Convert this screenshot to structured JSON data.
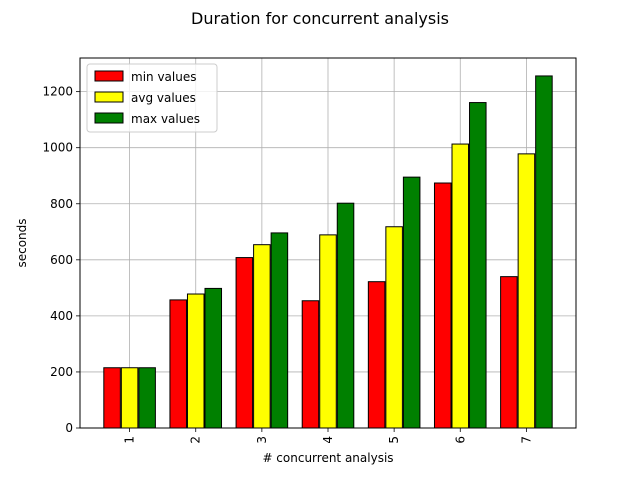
{
  "chart_data": {
    "type": "bar",
    "title": "Duration for concurrent analysis",
    "xlabel": "# concurrent analysis",
    "ylabel": "seconds",
    "categories": [
      "1",
      "2",
      "3",
      "4",
      "5",
      "6",
      "7"
    ],
    "series": [
      {
        "name": "min values",
        "color": "#ff0000",
        "values": [
          215,
          457,
          608,
          454,
          522,
          874,
          540
        ]
      },
      {
        "name": "avg values",
        "color": "#ffff00",
        "values": [
          215,
          478,
          654,
          689,
          718,
          1013,
          978
        ]
      },
      {
        "name": "max values",
        "color": "#008000",
        "values": [
          215,
          498,
          696,
          802,
          895,
          1161,
          1256
        ]
      }
    ],
    "ylim": [
      0,
      1320
    ],
    "yticks": [
      0,
      200,
      400,
      600,
      800,
      1000,
      1200
    ],
    "grid": true,
    "legend_position": "top-left"
  }
}
